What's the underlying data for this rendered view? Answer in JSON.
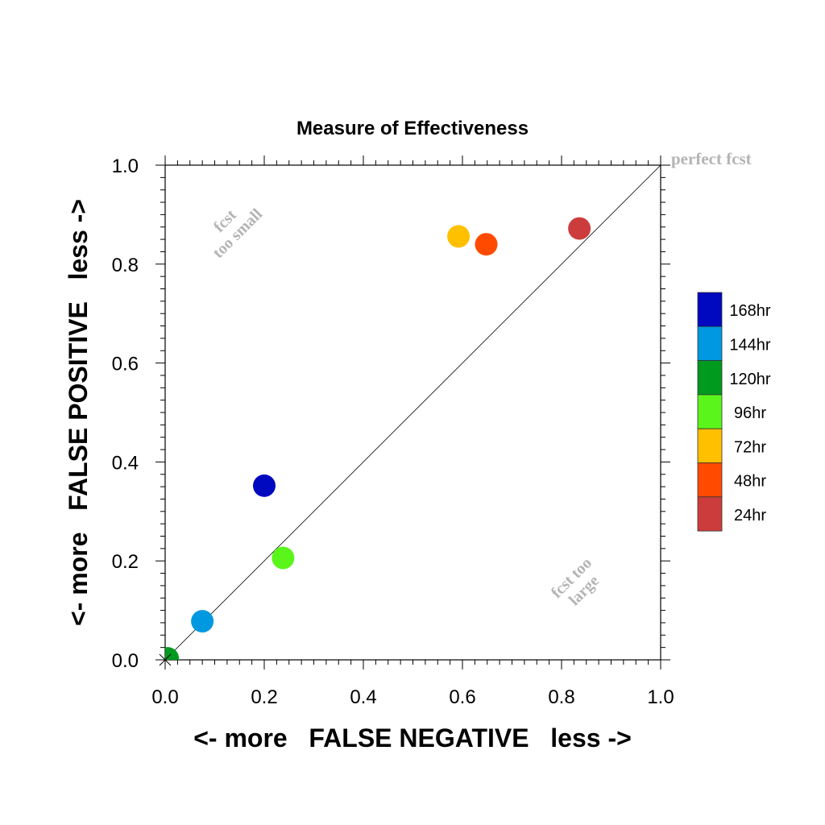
{
  "chart_data": {
    "type": "scatter",
    "title": "Measure of Effectiveness",
    "xlabel": "<- more   FALSE NEGATIVE   less ->",
    "ylabel": "<- more   FALSE POSITIVE   less ->",
    "xlim": [
      0.0,
      1.0
    ],
    "ylim": [
      0.0,
      1.0
    ],
    "xticks": [
      "0.0",
      "0.2",
      "0.4",
      "0.6",
      "0.8",
      "1.0"
    ],
    "yticks": [
      "0.0",
      "0.2",
      "0.4",
      "0.6",
      "0.8",
      "1.0"
    ],
    "grid": false,
    "diagonal": true,
    "annotations": {
      "perfect": "perfect fcst",
      "small_line1": "fcst",
      "small_line2": "too small",
      "large_line1": "fcst too",
      "large_line2": "large"
    },
    "legend_position": "right",
    "series": [
      {
        "name": "168hr",
        "color": "#0008c0",
        "x": 0.2,
        "y": 0.352
      },
      {
        "name": "144hr",
        "color": "#0098e0",
        "x": 0.075,
        "y": 0.078
      },
      {
        "name": "120hr",
        "color": "#009a1e",
        "x": 0.005,
        "y": 0.003
      },
      {
        "name": "96hr",
        "color": "#5af51a",
        "x": 0.238,
        "y": 0.206
      },
      {
        "name": "72hr",
        "color": "#ffc000",
        "x": 0.592,
        "y": 0.856
      },
      {
        "name": "48hr",
        "color": "#ff4a00",
        "x": 0.648,
        "y": 0.84
      },
      {
        "name": "24hr",
        "color": "#cd3c3c",
        "x": 0.836,
        "y": 0.872
      }
    ]
  }
}
